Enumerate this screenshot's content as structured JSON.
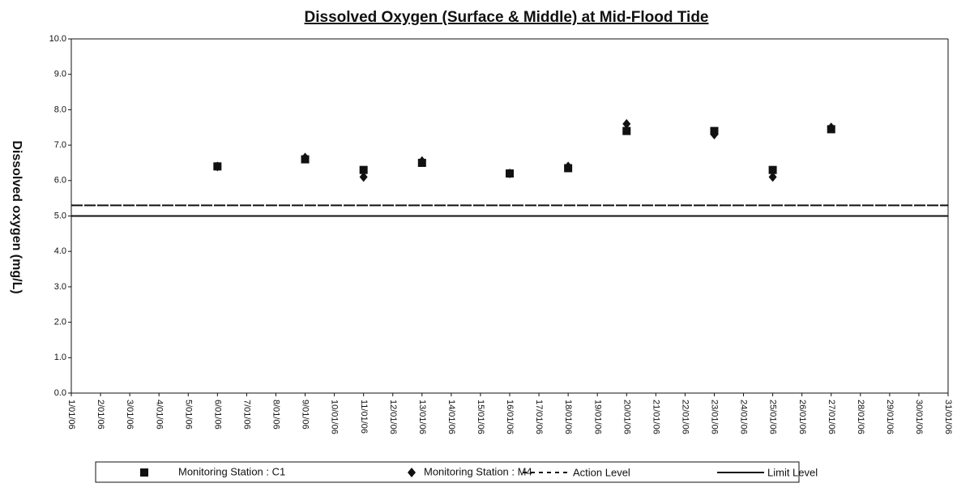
{
  "chart_data": {
    "type": "scatter",
    "title": "Dissolved Oxygen (Surface & Middle) at Mid-Flood Tide",
    "y_label": "Dissolved oxygen (mg/L)",
    "categories": [
      "1/01/06",
      "2/01/06",
      "3/01/06",
      "4/01/06",
      "5/01/06",
      "6/01/06",
      "7/01/06",
      "8/01/06",
      "9/01/06",
      "10/01/06",
      "11/01/06",
      "12/01/06",
      "13/01/06",
      "14/01/06",
      "15/01/06",
      "16/01/06",
      "17/01/06",
      "18/01/06",
      "19/01/06",
      "20/01/06",
      "21/01/06",
      "22/01/06",
      "23/01/06",
      "24/01/06",
      "25/01/06",
      "26/01/06",
      "27/01/06",
      "28/01/06",
      "29/01/06",
      "30/01/06",
      "31/01/06"
    ],
    "ylim": [
      0,
      10
    ],
    "yticks": [
      {
        "value": 0,
        "label": "0.0"
      },
      {
        "value": 1,
        "label": "1.0"
      },
      {
        "value": 2,
        "label": "2.0"
      },
      {
        "value": 3,
        "label": "3.0"
      },
      {
        "value": 4,
        "label": "4.0"
      },
      {
        "value": 5,
        "label": "5.0"
      },
      {
        "value": 6,
        "label": "6.0"
      },
      {
        "value": 7,
        "label": "7.0"
      },
      {
        "value": 8,
        "label": "8.0"
      },
      {
        "value": 9,
        "label": "9.0"
      },
      {
        "value": 10,
        "label": "10.0"
      }
    ],
    "series": [
      {
        "name": "Monitoring Station : C1",
        "color": "#111111",
        "marker": "square",
        "values": [
          null,
          null,
          null,
          null,
          null,
          6.4,
          null,
          null,
          6.6,
          null,
          6.3,
          null,
          6.5,
          null,
          null,
          6.2,
          null,
          6.35,
          null,
          7.4,
          null,
          null,
          7.4,
          null,
          6.3,
          null,
          7.45,
          null,
          null,
          null,
          null
        ]
      },
      {
        "name": "Monitoring Station : M4",
        "color": "#111111",
        "marker": "diamond",
        "values": [
          null,
          null,
          null,
          null,
          null,
          6.4,
          null,
          null,
          6.65,
          null,
          6.1,
          null,
          6.55,
          null,
          null,
          6.2,
          null,
          6.4,
          null,
          7.6,
          null,
          null,
          7.3,
          null,
          6.1,
          null,
          7.5,
          null,
          null,
          null,
          null
        ]
      },
      {
        "name": "Action Level",
        "color": "#111111",
        "marker": "dashed-line",
        "values": [
          5.3,
          5.3,
          5.3,
          5.3,
          5.3,
          5.3,
          5.3,
          5.3,
          5.3,
          5.3,
          5.3,
          5.3,
          5.3,
          5.3,
          5.3,
          5.3,
          5.3,
          5.3,
          5.3,
          5.3,
          5.3,
          5.3,
          5.3,
          5.3,
          5.3,
          5.3,
          5.3,
          5.3,
          5.3,
          5.3,
          5.3
        ]
      },
      {
        "name": "Limit Level",
        "color": "#111111",
        "marker": "solid-line",
        "values": [
          5,
          5,
          5,
          5,
          5,
          5,
          5,
          5,
          5,
          5,
          5,
          5,
          5,
          5,
          5,
          5,
          5,
          5,
          5,
          5,
          5,
          5,
          5,
          5,
          5,
          5,
          5,
          5,
          5,
          5,
          5
        ]
      }
    ]
  }
}
